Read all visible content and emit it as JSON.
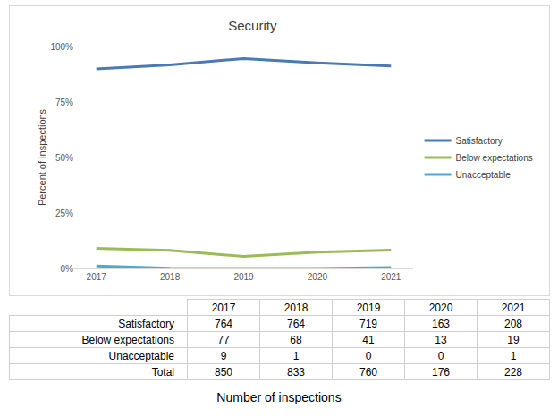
{
  "chart_data": {
    "type": "line",
    "title": "Security",
    "y_label": "Percent of inspections",
    "categories": [
      "2017",
      "2018",
      "2019",
      "2020",
      "2021"
    ],
    "series": [
      {
        "name": "Satisfactory",
        "color": "#4a7ab5",
        "values": [
          89.9,
          91.7,
          94.6,
          92.6,
          91.2
        ]
      },
      {
        "name": "Below expectations",
        "color": "#9bbb59",
        "values": [
          9.1,
          8.2,
          5.4,
          7.4,
          8.3
        ]
      },
      {
        "name": "Unacceptable",
        "color": "#4bacc6",
        "values": [
          1.1,
          0.1,
          0,
          0,
          0.4
        ]
      }
    ],
    "ylim": [
      0,
      100
    ],
    "yticks": [
      {
        "value": 0,
        "label": "0%"
      },
      {
        "value": 25,
        "label": "25%"
      },
      {
        "value": 50,
        "label": "50%"
      },
      {
        "value": 75,
        "label": "75%"
      },
      {
        "value": 100,
        "label": "100%"
      }
    ],
    "grid": false,
    "legend": "right"
  },
  "table": {
    "columns": [
      "2017",
      "2018",
      "2019",
      "2020",
      "2021"
    ],
    "rows": [
      {
        "label": "Satisfactory",
        "cells": [
          764,
          764,
          719,
          163,
          208
        ]
      },
      {
        "label": "Below expectations",
        "cells": [
          77,
          68,
          41,
          13,
          19
        ]
      },
      {
        "label": "Unacceptable",
        "cells": [
          9,
          1,
          0,
          0,
          1
        ]
      },
      {
        "label": "Total",
        "cells": [
          850,
          833,
          760,
          176,
          228
        ]
      }
    ],
    "caption": "Number of inspections"
  }
}
